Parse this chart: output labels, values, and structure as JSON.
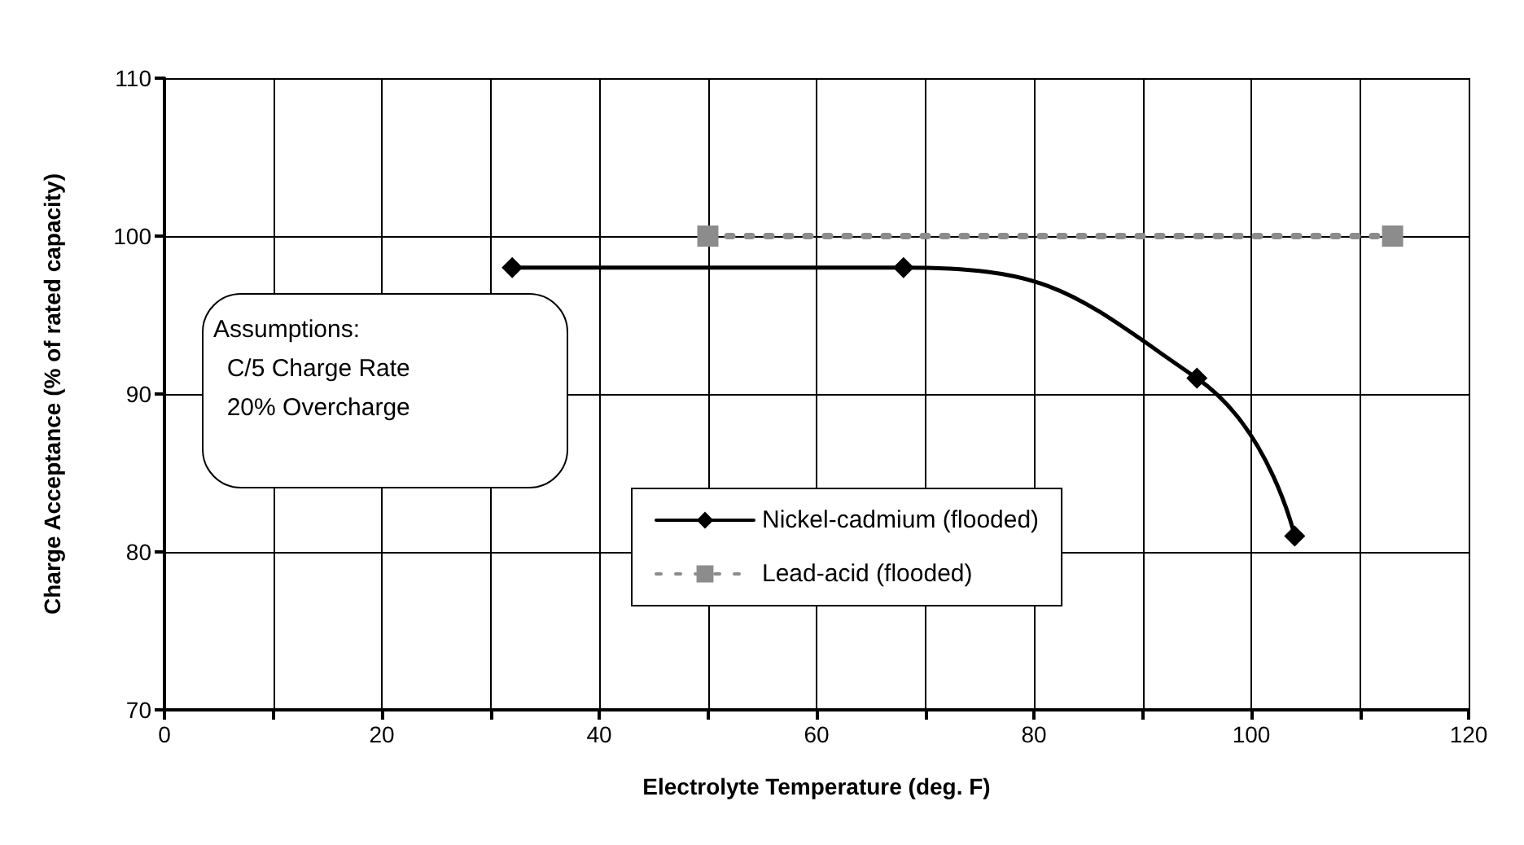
{
  "chart_data": {
    "type": "line",
    "xlabel": "Electrolyte Temperature (deg. F)",
    "ylabel": "Charge Acceptance (% of rated capacity)",
    "xlim": [
      0,
      120
    ],
    "xticks": [
      0,
      {
        "value": 10,
        "label": null
      },
      20,
      {
        "value": 30,
        "label": null
      },
      40,
      {
        "value": 50,
        "label": null
      },
      60,
      {
        "value": 70,
        "label": null
      },
      80,
      {
        "value": 90,
        "label": null
      },
      100,
      {
        "value": 110,
        "label": null
      },
      120
    ],
    "ylim": [
      70,
      110
    ],
    "yticks": [
      70,
      80,
      90,
      100,
      110
    ],
    "grid": true,
    "legend": "bottom right",
    "annotations": [
      "Assumptions:\n  C/5 Charge Rate\n  20% Overcharge"
    ],
    "series": [
      {
        "name": "Nickel-cadmium (flooded)",
        "color": "#000000",
        "x": [
          32,
          68,
          95,
          104
        ],
        "values": [
          98,
          98,
          91,
          81
        ],
        "marker": "diamond",
        "line_style": "solid"
      },
      {
        "name": "Lead-acid (flooded)",
        "color": "#8c8c8c",
        "x": [
          50,
          113
        ],
        "values": [
          100,
          100
        ],
        "marker": "square",
        "line_style": "dotted"
      }
    ]
  }
}
